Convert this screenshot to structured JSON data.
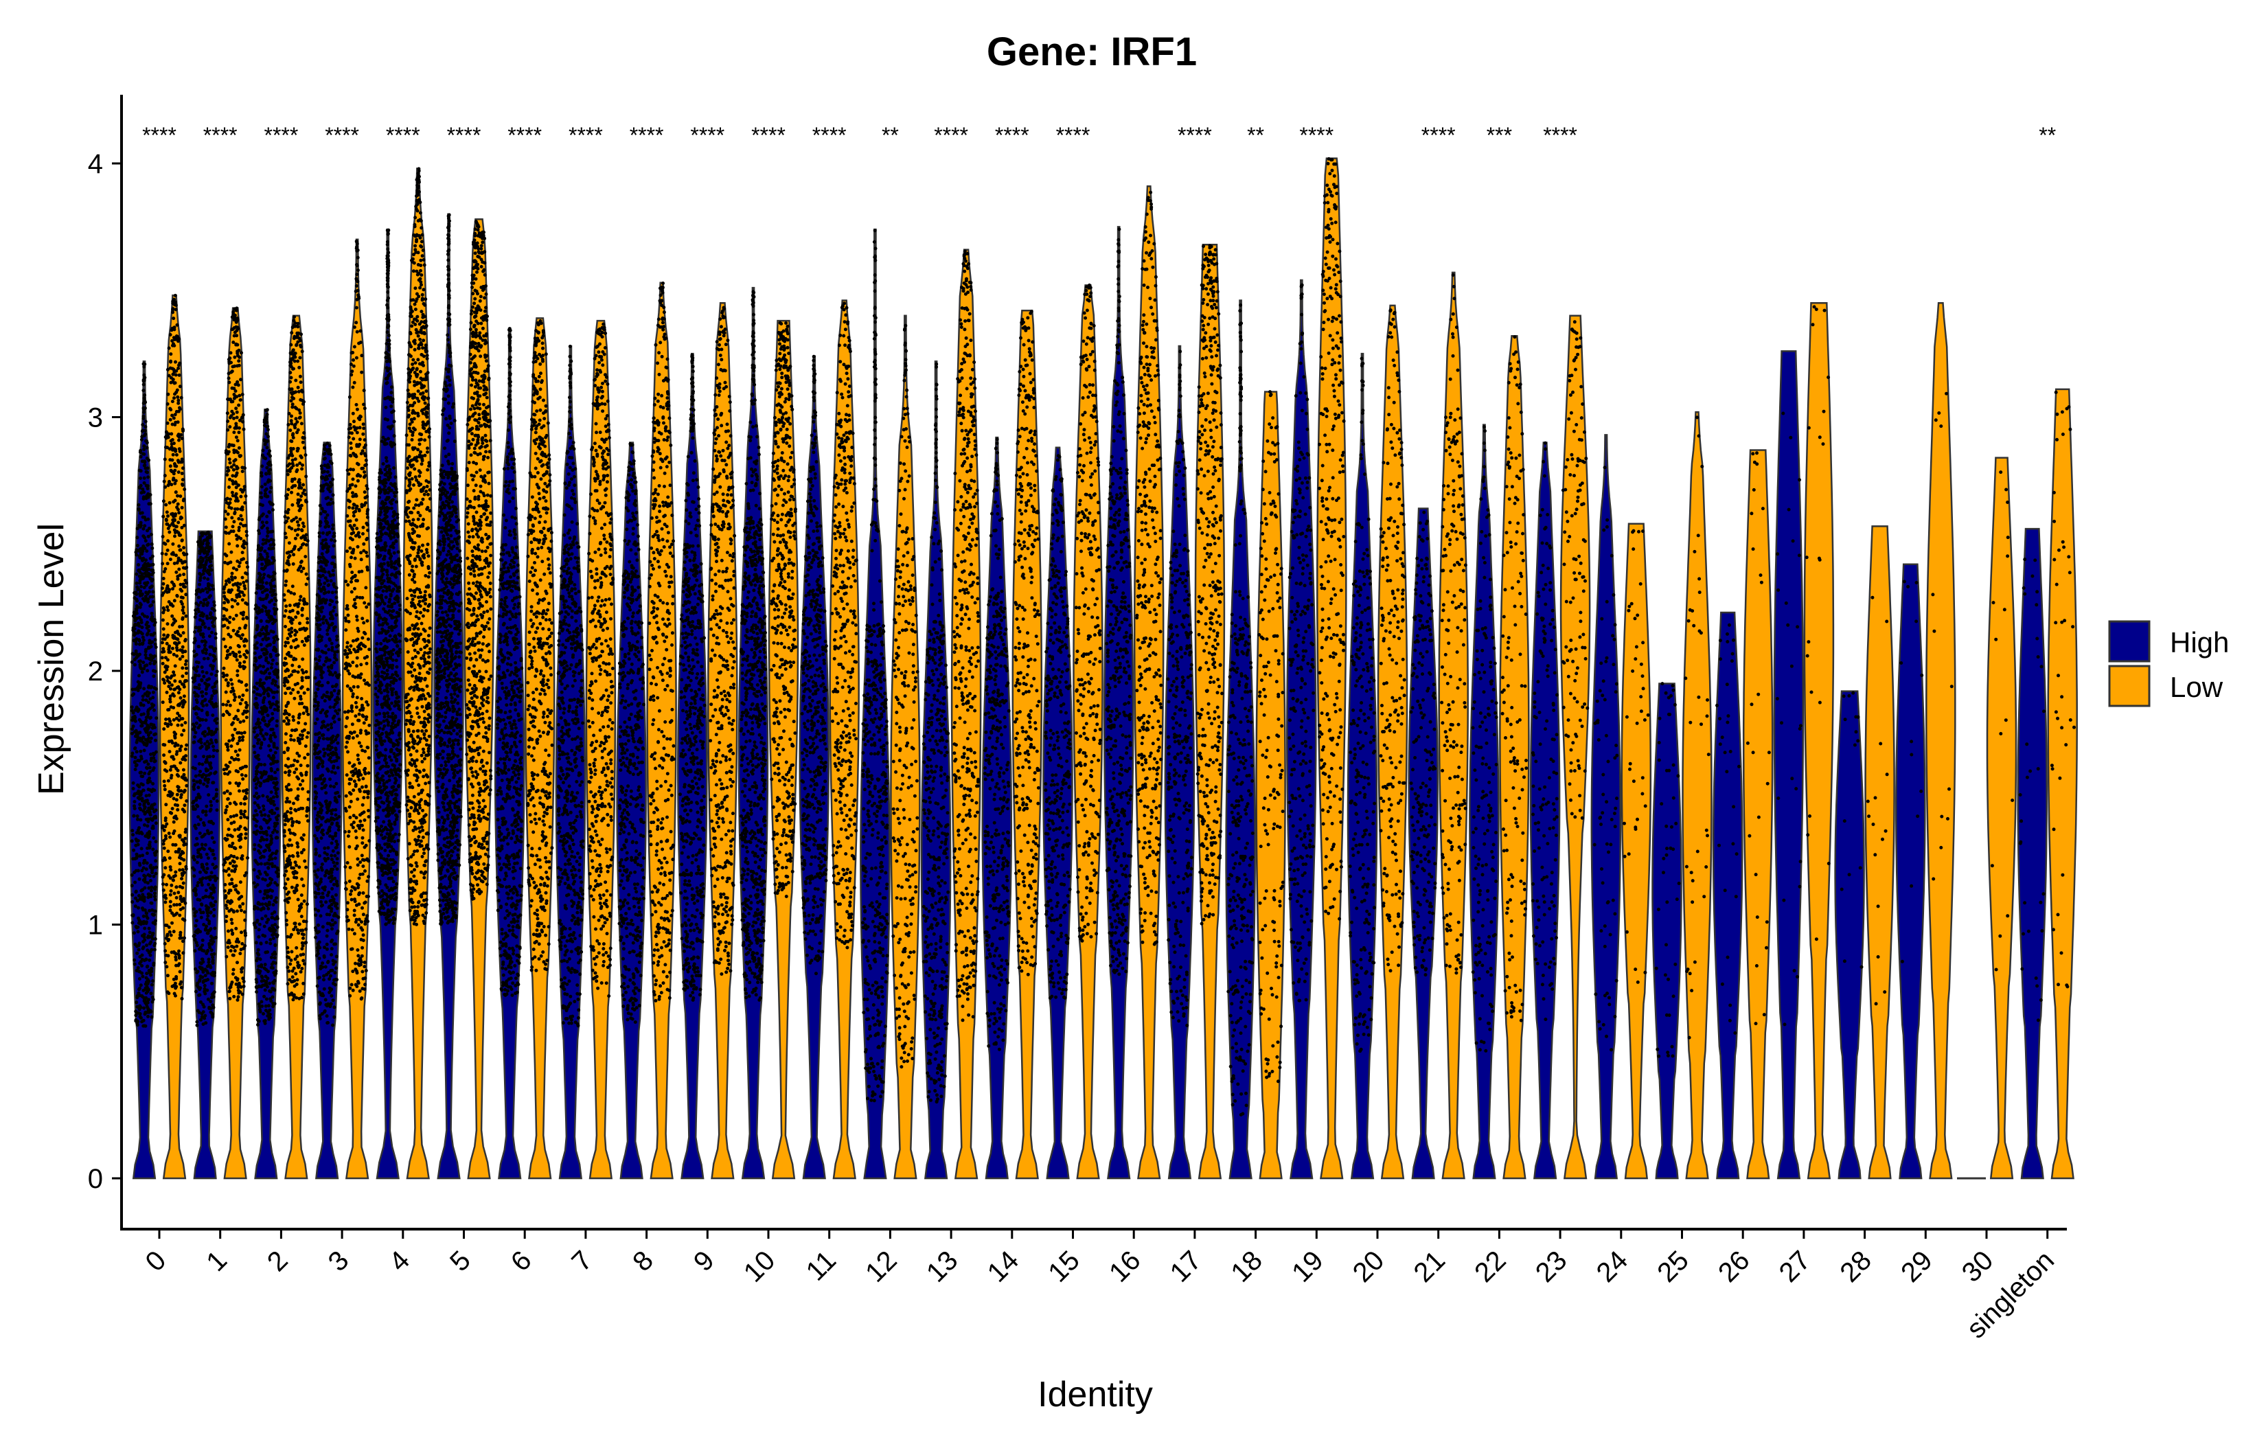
{
  "chart_data": {
    "type": "violin",
    "title": "Gene: IRF1",
    "xlabel": "Identity",
    "ylabel": "Expression Level",
    "ylim": [
      -0.2,
      4.25
    ],
    "yticks": [
      0,
      1,
      2,
      3,
      4
    ],
    "categories": [
      "0",
      "1",
      "2",
      "3",
      "4",
      "5",
      "6",
      "7",
      "8",
      "9",
      "10",
      "11",
      "12",
      "13",
      "14",
      "15",
      "16",
      "17",
      "18",
      "19",
      "20",
      "21",
      "22",
      "23",
      "24",
      "25",
      "26",
      "27",
      "28",
      "29",
      "30",
      "singleton"
    ],
    "significance": [
      "****",
      "****",
      "****",
      "****",
      "****",
      "****",
      "****",
      "****",
      "****",
      "****",
      "****",
      "****",
      "**",
      "****",
      "****",
      "****",
      "",
      "****",
      "**",
      "****",
      "",
      "****",
      "***",
      "****",
      "",
      "",
      "",
      "",
      "",
      "",
      "",
      "**"
    ],
    "legend": {
      "title": "",
      "position": "right",
      "entries": [
        "High",
        "Low"
      ]
    },
    "colors": {
      "High": "#00008B",
      "Low": "#FFA500",
      "point": "#000000",
      "outline": "#333333"
    },
    "grid": false,
    "series": [
      {
        "name": "High",
        "max": [
          3.22,
          2.55,
          3.03,
          2.9,
          3.74,
          3.8,
          3.35,
          3.28,
          2.9,
          3.25,
          3.51,
          3.24,
          3.74,
          3.22,
          2.92,
          2.88,
          3.75,
          3.28,
          3.46,
          3.54,
          3.25,
          2.64,
          2.97,
          2.9,
          2.93,
          1.95,
          2.23,
          3.26,
          1.92,
          2.42,
          0.0,
          2.56
        ],
        "q_low": [
          0.6,
          0.6,
          0.6,
          0.6,
          1.0,
          1.0,
          0.7,
          0.6,
          0.6,
          0.7,
          0.7,
          0.8,
          0.3,
          0.3,
          0.5,
          0.7,
          0.8,
          0.6,
          0.25,
          0.7,
          0.5,
          0.8,
          0.5,
          0.6,
          0.5,
          0.4,
          0.5,
          0.6,
          0.5,
          0.6,
          0.0,
          0.6
        ],
        "q_high": [
          2.5,
          2.4,
          2.5,
          2.5,
          2.8,
          2.8,
          2.5,
          2.5,
          2.4,
          2.5,
          2.6,
          2.5,
          2.2,
          2.2,
          2.3,
          2.4,
          2.8,
          2.5,
          2.3,
          2.8,
          2.4,
          2.3,
          2.3,
          2.4,
          2.3,
          1.9,
          2.1,
          3.1,
          1.9,
          2.3,
          0.0,
          2.4
        ],
        "n_points": [
          900,
          700,
          850,
          750,
          1050,
          1050,
          700,
          650,
          550,
          600,
          800,
          550,
          500,
          450,
          400,
          380,
          480,
          320,
          330,
          280,
          250,
          220,
          170,
          140,
          70,
          45,
          30,
          25,
          15,
          12,
          0,
          30
        ]
      },
      {
        "name": "Low",
        "max": [
          3.48,
          3.43,
          3.4,
          3.7,
          3.98,
          3.78,
          3.39,
          3.38,
          3.53,
          3.45,
          3.38,
          3.46,
          3.4,
          3.66,
          3.42,
          3.52,
          3.91,
          3.68,
          3.1,
          4.02,
          3.44,
          3.57,
          3.32,
          3.4,
          2.58,
          3.02,
          2.87,
          3.45,
          2.57,
          3.45,
          2.84,
          3.11
        ],
        "q_low": [
          0.7,
          0.7,
          0.7,
          0.7,
          1.0,
          1.1,
          0.8,
          0.7,
          0.7,
          0.8,
          1.1,
          0.9,
          0.4,
          0.6,
          0.8,
          0.9,
          0.9,
          1.0,
          0.3,
          1.0,
          0.8,
          0.8,
          0.6,
          1.4,
          0.7,
          0.5,
          0.6,
          0.9,
          0.6,
          0.7,
          0.8,
          0.7
        ],
        "q_high": [
          3.0,
          3.0,
          3.0,
          3.0,
          3.4,
          3.4,
          3.0,
          3.0,
          3.0,
          3.0,
          3.1,
          3.0,
          2.6,
          3.2,
          3.1,
          3.1,
          3.4,
          3.5,
          2.8,
          3.7,
          3.0,
          3.0,
          2.9,
          3.1,
          2.5,
          2.5,
          2.8,
          3.4,
          2.5,
          3.0,
          2.6,
          2.9
        ],
        "n_points": [
          700,
          650,
          650,
          550,
          900,
          850,
          550,
          500,
          420,
          450,
          500,
          400,
          280,
          450,
          350,
          320,
          380,
          420,
          180,
          300,
          220,
          200,
          150,
          130,
          40,
          35,
          25,
          20,
          15,
          12,
          15,
          40
        ]
      }
    ]
  }
}
